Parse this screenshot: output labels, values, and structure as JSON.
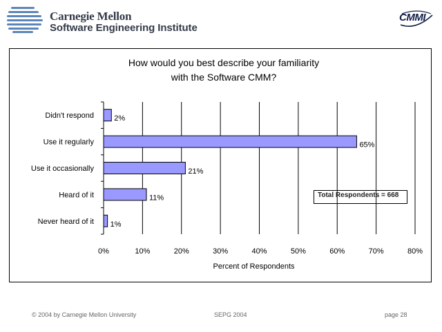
{
  "header": {
    "org_name": "Carnegie Mellon",
    "org_sub": "Software Engineering Institute",
    "cmmi_logo_text": "CMMI"
  },
  "chart_data": {
    "type": "bar",
    "orientation": "horizontal",
    "title_line1": "How would you best describe your familiarity",
    "title_line2": "with the Software CMM?",
    "categories": [
      "Didn't respond",
      "Use it regularly",
      "Use it occasionally",
      "Heard of it",
      "Never heard of it"
    ],
    "values": [
      2,
      65,
      21,
      11,
      1
    ],
    "value_labels": [
      "2%",
      "65%",
      "21%",
      "11%",
      "1%"
    ],
    "xlabel": "Percent of Respondents",
    "xlim": [
      0,
      80
    ],
    "xticks": [
      0,
      10,
      20,
      30,
      40,
      50,
      60,
      70,
      80
    ],
    "xtick_labels": [
      "0%",
      "10%",
      "20%",
      "30%",
      "40%",
      "50%",
      "60%",
      "70%",
      "80%"
    ],
    "annotation": "Total Respondents = 668",
    "bar_color": "#9999ff",
    "grid": true
  },
  "footer": {
    "copyright": "© 2004 by Carnegie Mellon University",
    "event": "SEPG 2004",
    "page": "page 28"
  }
}
